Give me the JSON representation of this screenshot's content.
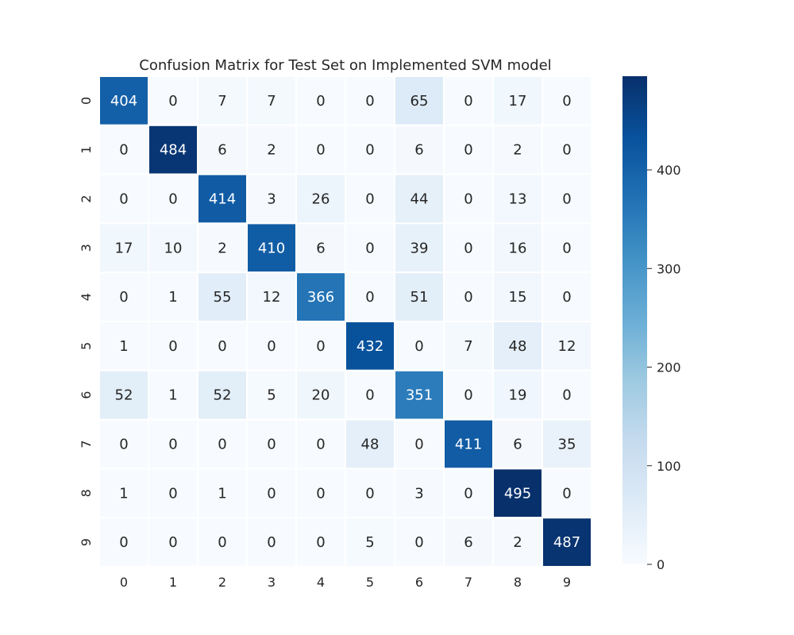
{
  "chart_data": {
    "type": "heatmap",
    "title": "Confusion Matrix for Test Set on Implemented SVM model",
    "xlabel": "",
    "ylabel": "",
    "x_categories": [
      "0",
      "1",
      "2",
      "3",
      "4",
      "5",
      "6",
      "7",
      "8",
      "9"
    ],
    "y_categories": [
      "0",
      "1",
      "2",
      "3",
      "4",
      "5",
      "6",
      "7",
      "8",
      "9"
    ],
    "values": [
      [
        404,
        0,
        7,
        7,
        0,
        0,
        65,
        0,
        17,
        0
      ],
      [
        0,
        484,
        6,
        2,
        0,
        0,
        6,
        0,
        2,
        0
      ],
      [
        0,
        0,
        414,
        3,
        26,
        0,
        44,
        0,
        13,
        0
      ],
      [
        17,
        10,
        2,
        410,
        6,
        0,
        39,
        0,
        16,
        0
      ],
      [
        0,
        1,
        55,
        12,
        366,
        0,
        51,
        0,
        15,
        0
      ],
      [
        1,
        0,
        0,
        0,
        0,
        432,
        0,
        7,
        48,
        12
      ],
      [
        52,
        1,
        52,
        5,
        20,
        0,
        351,
        0,
        19,
        0
      ],
      [
        0,
        0,
        0,
        0,
        0,
        48,
        0,
        411,
        6,
        35
      ],
      [
        1,
        0,
        1,
        0,
        0,
        0,
        3,
        0,
        495,
        0
      ],
      [
        0,
        0,
        0,
        0,
        0,
        5,
        0,
        6,
        2,
        487
      ]
    ],
    "colormap": "Blues",
    "color_range": [
      0,
      495
    ],
    "colorbar_ticks": [
      0,
      100,
      200,
      300,
      400
    ],
    "annotations": true,
    "grid": false
  }
}
